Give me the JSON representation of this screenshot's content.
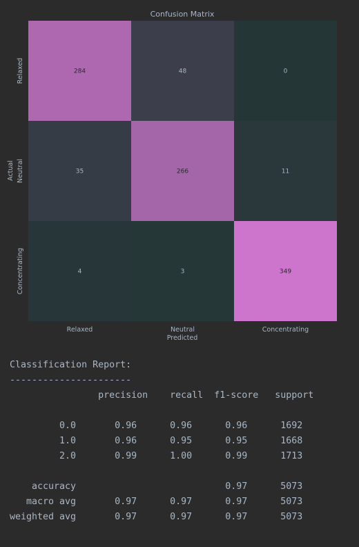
{
  "chart_data": {
    "type": "heatmap",
    "title": "Confusion Matrix",
    "xlabel": "Predicted",
    "ylabel": "Actual",
    "x_categories": [
      "Relaxed",
      "Neutral",
      "Concentrating"
    ],
    "y_categories": [
      "Relaxed",
      "Neutral",
      "Concentrating"
    ],
    "values": [
      [
        284,
        48,
        0
      ],
      [
        35,
        266,
        11
      ],
      [
        4,
        3,
        349
      ]
    ],
    "colorbar": false,
    "colors": {
      "low": "#253637",
      "high": "#cd74cc",
      "background": "#2b2b2b",
      "text": "#a9b7c6",
      "cell_text": "#2b2b2b"
    }
  },
  "report": {
    "lines": [
      "Classification Report:",
      "----------------------",
      "                precision    recall  f1-score   support",
      "",
      "         0.0       0.96      0.96      0.96      1692",
      "         1.0       0.96      0.95      0.95      1668",
      "         2.0       0.99      1.00      0.99      1713",
      "",
      "    accuracy                           0.97      5073",
      "   macro avg       0.97      0.97      0.97      5073",
      "weighted avg       0.97      0.97      0.97      5073"
    ]
  }
}
